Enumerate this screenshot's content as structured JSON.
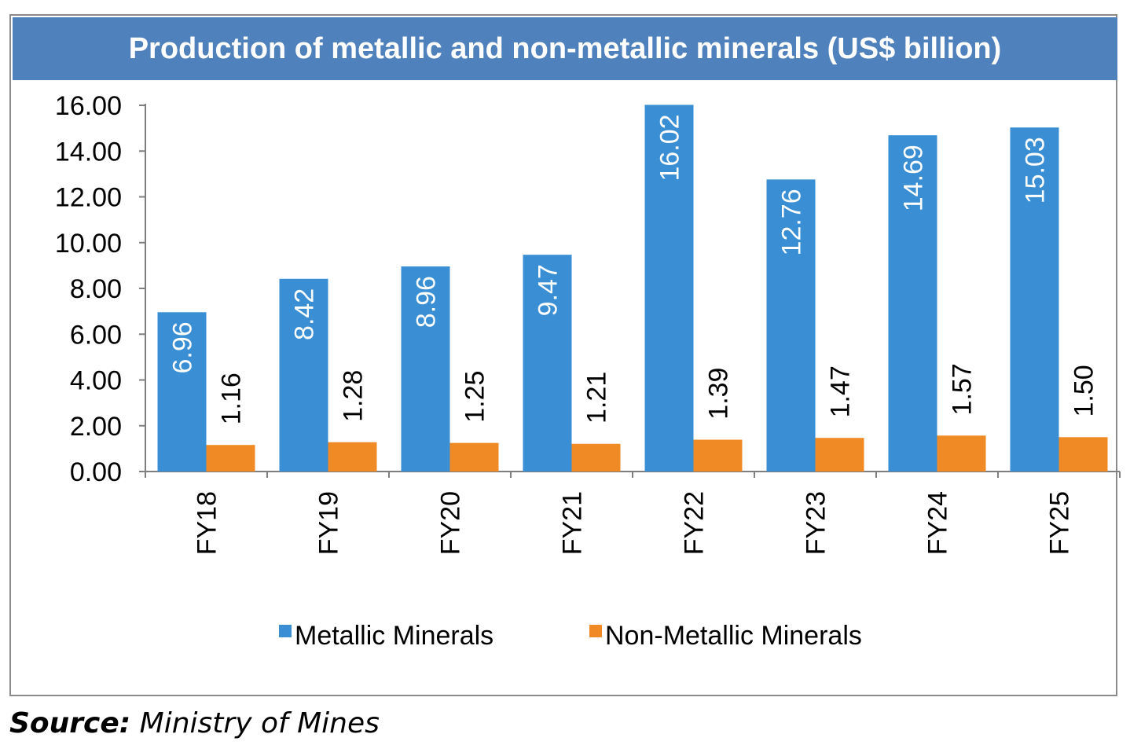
{
  "chart_data": {
    "type": "bar",
    "title": "Production of metallic and non-metallic minerals (US$ billion)",
    "categories": [
      "FY18",
      "FY19",
      "FY20",
      "FY21",
      "FY22",
      "FY23",
      "FY24",
      "FY25"
    ],
    "series": [
      {
        "name": "Metallic Minerals",
        "color": "#3a8fd4",
        "values": [
          6.96,
          8.42,
          8.96,
          9.47,
          16.02,
          12.76,
          14.69,
          15.03
        ],
        "labels": [
          "6.96",
          "8.42",
          "8.96",
          "9.47",
          "16.02",
          "12.76",
          "14.69",
          "15.03"
        ]
      },
      {
        "name": "Non-Metallic Minerals",
        "color": "#f08a24",
        "values": [
          1.16,
          1.28,
          1.25,
          1.21,
          1.39,
          1.47,
          1.57,
          1.5
        ],
        "labels": [
          "1.16",
          "1.28",
          "1.25",
          "1.21",
          "1.39",
          "1.47",
          "1.57",
          "1.50"
        ]
      }
    ],
    "yticks": [
      "0.00",
      "2.00",
      "4.00",
      "6.00",
      "8.00",
      "10.00",
      "12.00",
      "14.00",
      "16.00"
    ],
    "ylim": [
      0,
      16
    ],
    "xlabel": "",
    "ylabel": "",
    "grid": false,
    "legend": "bottom",
    "data_labels": "rotated"
  },
  "source": {
    "label": "Source:",
    "text": "Ministry of Mines"
  }
}
